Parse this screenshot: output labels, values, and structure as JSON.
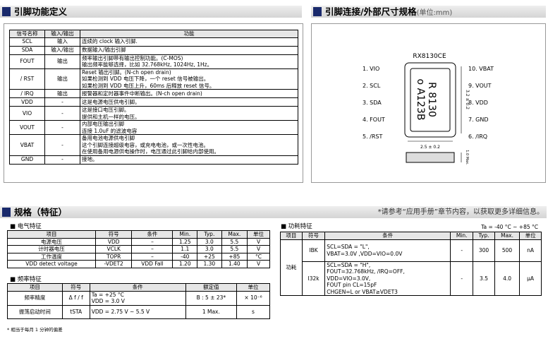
{
  "pin_section": {
    "title": "引脚功能定义",
    "table": {
      "headers": [
        "信号名称",
        "输入/输出",
        "功能"
      ],
      "rows": [
        [
          "SCL",
          "输入",
          [
            "连续的 clock 输入引脚."
          ]
        ],
        [
          "SDA",
          "输入/输出",
          [
            "数据输入/输出引脚"
          ]
        ],
        [
          "FOUT",
          "输出",
          [
            "频率输出引脚带有输出控制功能。(C-MOS)",
            "输出频率能够选择，比如 32.768kHz, 1024Hz, 1Hz。"
          ]
        ],
        [
          "/ RST",
          "输出",
          [
            "Reset 输出引脚。(N-ch open drain)",
            "如果检测到 VDD 电压下降，一个 reset 信号被输出。",
            "如果检测到 VDD 电压上升，60ms 后释放 reset 信号。"
          ]
        ],
        [
          "/ IRQ",
          "输出",
          [
            "报警器和定时器事件中断输出。(N-ch open drain)"
          ]
        ],
        [
          "VDD",
          "-",
          [
            "这是电源电压供电引脚。"
          ]
        ],
        [
          "VIO",
          "-",
          [
            "这是接口电压引脚。",
            "提供和主机一样的电压。"
          ]
        ],
        [
          "VOUT",
          "-",
          [
            "内部电压输出引脚",
            "连接 1.0uF 的滤波电容"
          ]
        ],
        [
          "VBAT",
          "-",
          [
            "备用电池电源供电引脚",
            "这个引脚连接超级电容，或充电电池，或一次性电池。",
            "在使用备用电源供电操作时，电压通过此引脚给内部使用。"
          ]
        ],
        [
          "GND",
          "-",
          [
            "接地。"
          ]
        ]
      ]
    }
  },
  "package_section": {
    "title": "引脚连接/外部尺寸规格",
    "unit": "(单位:mm)",
    "part": "RX8130CE",
    "marking": [
      "R 8130",
      "o A123B"
    ],
    "left_pins": [
      "1.  VIO",
      "2.  SCL",
      "3.  SDA",
      "4.  FOUT",
      "5.  /RST"
    ],
    "right_pins": [
      "10.  VBAT",
      "9.  VOUT",
      "8.  VDD",
      "7.  GND",
      "6.  /IRQ"
    ],
    "dims": [
      "3.2 ± 0.2",
      "2.5 ± 0.2",
      "1.0 Max."
    ]
  },
  "spec_section": {
    "title": "规格（特征）",
    "note": "*请参考“应用手册”章节内容，以获取更多详细信息。"
  },
  "electrical": {
    "title": "■  电气特征",
    "headers": [
      "项目",
      "符号",
      "条件",
      "Min.",
      "Typ.",
      "Max.",
      "单位"
    ],
    "rows": [
      [
        "电源电压",
        "VDD",
        "–",
        "1.25",
        "3.0",
        "5.5",
        "V"
      ],
      [
        "计时器电压",
        "VCLK",
        "–",
        "1.1",
        "3.0",
        "5.5",
        "V"
      ],
      [
        "工作温度",
        "TOPR",
        "–",
        "-40",
        "+25",
        "+85",
        "°C"
      ],
      [
        "VDD detect voltage",
        "-VDET2",
        "VDD Fall",
        "1.20",
        "1.30",
        "1.40",
        "V"
      ]
    ]
  },
  "frequency": {
    "title": "■  频率特征",
    "headers": [
      "项目",
      "符号",
      "条件",
      "额定值",
      "单位"
    ],
    "rows": [
      [
        "频率精度",
        "Δ f / f",
        [
          "Ta = +25 °C",
          "VDD = 3.0 V"
        ],
        "B : 5 ± 23*",
        "× 10⁻⁶"
      ],
      [
        "振荡启动时间",
        "tSTA",
        "VDD = 2.75 V ~ 5.5 V",
        "1  Max.",
        "s"
      ]
    ],
    "footnote": "* 相当于每月 1 分钟的偏差"
  },
  "power": {
    "title": "■  功耗特征",
    "condition": "Ta = -40 °C ~ +85 °C",
    "headers": [
      "项目",
      "符号",
      "条件",
      "Min.",
      "Typ.",
      "Max.",
      "单位"
    ],
    "category": "功耗",
    "rows": [
      [
        "IBK",
        [
          "SCL=SDA = \"L\",",
          "VBAT=3.0V ,VDD=VIO=0.0V"
        ],
        "-",
        "300",
        "500",
        "nA"
      ],
      [
        "I32k",
        [
          "SCL=SDA = \"H\",",
          "FOUT=32.768kHz,   /IRQ=OFF,",
          "VDD=VIO=3.0V,",
          "FOUT pin   CL=15pF",
          "CHGEN=L or VBAT≥VDET3"
        ],
        "-",
        "3.5",
        "4.0",
        "µA"
      ]
    ]
  }
}
